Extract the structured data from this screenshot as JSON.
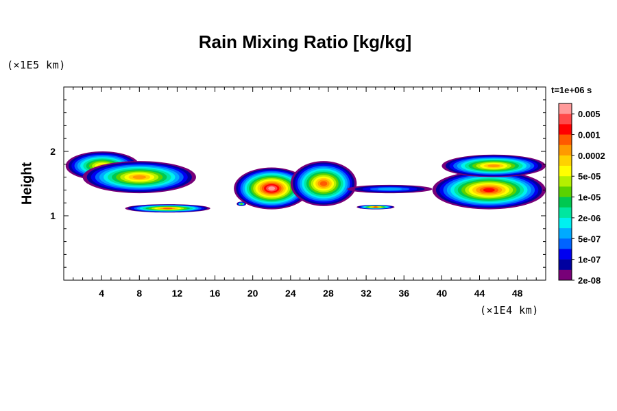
{
  "chart_data": {
    "type": "heatmap",
    "title": "Rain Mixing Ratio [kg/kg]",
    "xlabel": "",
    "ylabel": "Height",
    "x_unit": "(×1E4 km)",
    "y_unit": "(×1E5 km)",
    "time_label": "t=1e+06 s",
    "xlim": [
      0,
      51
    ],
    "ylim": [
      0,
      3
    ],
    "x_ticks": [
      4,
      8,
      12,
      16,
      20,
      24,
      28,
      32,
      36,
      40,
      44,
      48
    ],
    "y_ticks": [
      1,
      2
    ],
    "colorbar": {
      "levels": [
        "0.005",
        "0.001",
        "0.0002",
        "5e-05",
        "1e-05",
        "2e-06",
        "5e-07",
        "1e-07",
        "2e-08"
      ],
      "colors": [
        "#ff9a9a",
        "#ff4a4a",
        "#ff0000",
        "#ff5a00",
        "#ff9a00",
        "#ffd200",
        "#ffff00",
        "#b4f000",
        "#5ad200",
        "#00c850",
        "#00e6a0",
        "#00f0f0",
        "#00aaff",
        "#0064ff",
        "#0000f0",
        "#0000a0",
        "#780078"
      ]
    },
    "regions": [
      {
        "name": "band-upper-left",
        "x": [
          0.2,
          8
        ],
        "y": [
          1.55,
          2.0
        ],
        "level": 5
      },
      {
        "name": "band-left-mid",
        "x": [
          2,
          14
        ],
        "y": [
          1.35,
          1.85
        ],
        "level": 4
      },
      {
        "name": "lower-left-cell",
        "x": [
          6.5,
          15.5
        ],
        "y": [
          1.05,
          1.18
        ],
        "level": 3
      },
      {
        "name": "center-core",
        "x": [
          18,
          26
        ],
        "y": [
          1.1,
          1.75
        ],
        "level": 0
      },
      {
        "name": "center-right-mass",
        "x": [
          24,
          31
        ],
        "y": [
          1.15,
          1.85
        ],
        "level": 3
      },
      {
        "name": "small-cell-32",
        "x": [
          31,
          35
        ],
        "y": [
          1.1,
          1.17
        ],
        "level": 3
      },
      {
        "name": "small-cell-19",
        "x": [
          18.3,
          19.3
        ],
        "y": [
          1.15,
          1.22
        ],
        "level": 8
      },
      {
        "name": "thin-band-right",
        "x": [
          30,
          39
        ],
        "y": [
          1.35,
          1.48
        ],
        "level": 12
      },
      {
        "name": "right-lower-cell",
        "x": [
          39,
          51
        ],
        "y": [
          1.1,
          1.7
        ],
        "level": 2
      },
      {
        "name": "right-upper-cell",
        "x": [
          40,
          51
        ],
        "y": [
          1.6,
          1.95
        ],
        "level": 4
      }
    ]
  }
}
